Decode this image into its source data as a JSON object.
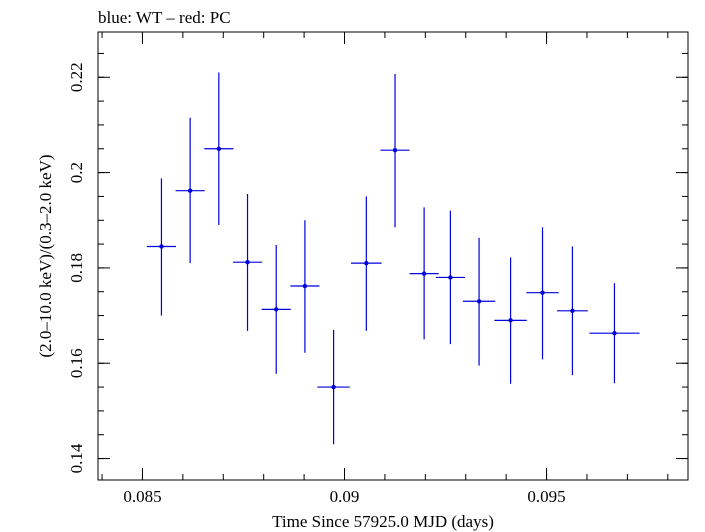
{
  "chart_data": {
    "type": "scatter",
    "title": "blue: WT – red: PC",
    "xlabel": "Time Since 57925.0 MJD (days)",
    "ylabel": "(2.0–10.0 keV)/(0.3–2.0 keV)",
    "xlim": [
      0.0839,
      0.0985
    ],
    "ylim": [
      0.1355,
      0.2295
    ],
    "x_ticks": [
      {
        "value": 0.085,
        "label": "0.085"
      },
      {
        "value": 0.09,
        "label": "0.09"
      },
      {
        "value": 0.095,
        "label": "0.095"
      }
    ],
    "y_ticks": [
      {
        "value": 0.14,
        "label": "0.14"
      },
      {
        "value": 0.16,
        "label": "0.16"
      },
      {
        "value": 0.18,
        "label": "0.18"
      },
      {
        "value": 0.2,
        "label": "0.2"
      },
      {
        "value": 0.22,
        "label": "0.22"
      }
    ],
    "x_minor_step": 0.001,
    "y_minor_step": 0.005,
    "grid": false,
    "series": [
      {
        "name": "WT",
        "color": "#0000dd",
        "points": [
          {
            "x": 0.08547,
            "xerr": 0.00036,
            "y": 0.1845,
            "ylo": 0.17,
            "yhi": 0.1988
          },
          {
            "x": 0.08618,
            "xerr": 0.00036,
            "y": 0.1962,
            "ylo": 0.181,
            "yhi": 0.2115
          },
          {
            "x": 0.08689,
            "xerr": 0.00036,
            "y": 0.205,
            "ylo": 0.189,
            "yhi": 0.221
          },
          {
            "x": 0.0876,
            "xerr": 0.00036,
            "y": 0.1812,
            "ylo": 0.1668,
            "yhi": 0.1955
          },
          {
            "x": 0.08831,
            "xerr": 0.00036,
            "y": 0.1713,
            "ylo": 0.1578,
            "yhi": 0.1848
          },
          {
            "x": 0.08902,
            "xerr": 0.00036,
            "y": 0.1762,
            "ylo": 0.1622,
            "yhi": 0.19
          },
          {
            "x": 0.08973,
            "xerr": 0.0004,
            "y": 0.155,
            "ylo": 0.143,
            "yhi": 0.167
          },
          {
            "x": 0.09054,
            "xerr": 0.00038,
            "y": 0.181,
            "ylo": 0.1668,
            "yhi": 0.195
          },
          {
            "x": 0.09125,
            "xerr": 0.00036,
            "y": 0.2047,
            "ylo": 0.1885,
            "yhi": 0.2207
          },
          {
            "x": 0.09197,
            "xerr": 0.00036,
            "y": 0.1788,
            "ylo": 0.165,
            "yhi": 0.1927
          },
          {
            "x": 0.09262,
            "xerr": 0.00036,
            "y": 0.178,
            "ylo": 0.164,
            "yhi": 0.192
          },
          {
            "x": 0.09333,
            "xerr": 0.0004,
            "y": 0.173,
            "ylo": 0.1595,
            "yhi": 0.1863
          },
          {
            "x": 0.09411,
            "xerr": 0.0004,
            "y": 0.169,
            "ylo": 0.1557,
            "yhi": 0.1822
          },
          {
            "x": 0.0949,
            "xerr": 0.0004,
            "y": 0.1748,
            "ylo": 0.1608,
            "yhi": 0.1885
          },
          {
            "x": 0.09564,
            "xerr": 0.00038,
            "y": 0.171,
            "ylo": 0.1575,
            "yhi": 0.1845
          },
          {
            "x": 0.09668,
            "xerr": 0.00062,
            "y": 0.1663,
            "ylo": 0.1558,
            "yhi": 0.1768
          }
        ]
      }
    ]
  }
}
